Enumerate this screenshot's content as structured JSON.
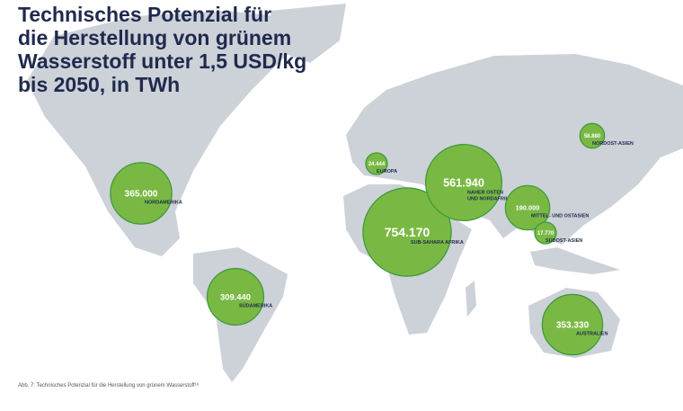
{
  "title_lines": [
    "Technisches Potenzial für",
    "die Herstellung von grünem",
    "Wasserstoff unter 1,5 USD/kg",
    "bis 2050, in TWh"
  ],
  "regions": [
    {
      "name": [
        "NORDAMERIKA"
      ],
      "value": 365000,
      "value_label": "365.000"
    },
    {
      "name": [
        "SÜDAMERIKA"
      ],
      "value": 309440,
      "value_label": "309.440"
    },
    {
      "name": [
        "EUROPA"
      ],
      "value": 24444,
      "value_label": "24.444"
    },
    {
      "name": [
        "SUB-SAHARA AFRIKA"
      ],
      "value": 754170,
      "value_label": "754.170"
    },
    {
      "name": [
        "NAHER OSTEN",
        "UND NORDAFRIKA"
      ],
      "value": 561940,
      "value_label": "561.940"
    },
    {
      "name": [
        "MITTEL- UND OSTASIEN"
      ],
      "value": 190000,
      "value_label": "190.000"
    },
    {
      "name": [
        "SÜDOST-ASIEN"
      ],
      "value": 17770,
      "value_label": "17.770"
    },
    {
      "name": [
        "NORDOST-ASIEN"
      ],
      "value": 58880,
      "value_label": "58.880"
    },
    {
      "name": [
        "AUSTRALIEN"
      ],
      "value": 353330,
      "value_label": "353.330"
    }
  ],
  "caption": "Abb. 7: Technisches Potenzial für die Herstellung von grünem Wasserstoff¹⁸"
}
